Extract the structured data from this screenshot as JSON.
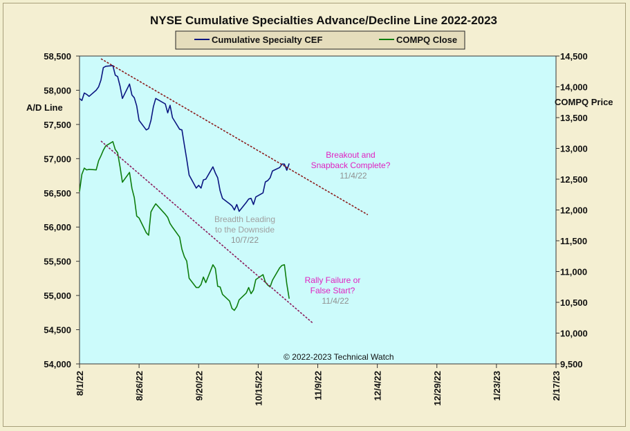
{
  "chart_data": {
    "type": "line",
    "title": "NYSE Cumulative Specialties Advance/Decline Line 2022-2023",
    "legend_position": "top-center",
    "grid": false,
    "plot_background": "#ccfbfb",
    "left_axis": {
      "label": "A/D Line",
      "ylim": [
        54000,
        58500
      ],
      "ticks": [
        "54,000",
        "54,500",
        "55,000",
        "55,500",
        "56,000",
        "56,500",
        "57,000",
        "57,500",
        "58,000",
        "58,500"
      ]
    },
    "right_axis": {
      "label": "COMPQ Price",
      "ylim": [
        9500,
        14500
      ],
      "ticks": [
        "9,500",
        "10,000",
        "10,500",
        "11,000",
        "11,500",
        "12,000",
        "12,500",
        "13,000",
        "13,500",
        "14,000",
        "14,500"
      ]
    },
    "x_axis": {
      "range": [
        "2022-08-01",
        "2023-02-17"
      ],
      "tick_labels": [
        "8/1/22",
        "8/26/22",
        "9/20/22",
        "10/15/22",
        "11/9/22",
        "12/4/22",
        "12/29/22",
        "1/23/23",
        "2/17/23"
      ],
      "tick_dates": [
        "2022-08-01",
        "2022-08-26",
        "2022-09-20",
        "2022-10-15",
        "2022-11-09",
        "2022-12-04",
        "2022-12-29",
        "2023-01-23",
        "2023-02-17"
      ]
    },
    "series": [
      {
        "name": "Cumulative Specialty CEF",
        "axis": "left",
        "color": "#0a1580",
        "points": [
          [
            "2022-08-01",
            57880
          ],
          [
            "2022-08-02",
            57850
          ],
          [
            "2022-08-03",
            57960
          ],
          [
            "2022-08-04",
            57940
          ],
          [
            "2022-08-05",
            57910
          ],
          [
            "2022-08-08",
            58000
          ],
          [
            "2022-08-09",
            58050
          ],
          [
            "2022-08-10",
            58150
          ],
          [
            "2022-08-11",
            58330
          ],
          [
            "2022-08-12",
            58350
          ],
          [
            "2022-08-15",
            58360
          ],
          [
            "2022-08-16",
            58220
          ],
          [
            "2022-08-17",
            58200
          ],
          [
            "2022-08-18",
            58060
          ],
          [
            "2022-08-19",
            57880
          ],
          [
            "2022-08-22",
            58090
          ],
          [
            "2022-08-23",
            57930
          ],
          [
            "2022-08-24",
            57890
          ],
          [
            "2022-08-25",
            57770
          ],
          [
            "2022-08-26",
            57560
          ],
          [
            "2022-08-29",
            57420
          ],
          [
            "2022-08-30",
            57440
          ],
          [
            "2022-08-31",
            57560
          ],
          [
            "2022-09-01",
            57760
          ],
          [
            "2022-09-02",
            57880
          ],
          [
            "2022-09-06",
            57800
          ],
          [
            "2022-09-07",
            57670
          ],
          [
            "2022-09-08",
            57780
          ],
          [
            "2022-09-09",
            57600
          ],
          [
            "2022-09-12",
            57430
          ],
          [
            "2022-09-13",
            57420
          ],
          [
            "2022-09-14",
            57200
          ],
          [
            "2022-09-15",
            56990
          ],
          [
            "2022-09-16",
            56760
          ],
          [
            "2022-09-19",
            56570
          ],
          [
            "2022-09-20",
            56610
          ],
          [
            "2022-09-21",
            56570
          ],
          [
            "2022-09-22",
            56690
          ],
          [
            "2022-09-23",
            56700
          ],
          [
            "2022-09-26",
            56880
          ],
          [
            "2022-09-27",
            56790
          ],
          [
            "2022-09-28",
            56720
          ],
          [
            "2022-09-29",
            56530
          ],
          [
            "2022-09-30",
            56420
          ],
          [
            "2022-10-03",
            56340
          ],
          [
            "2022-10-04",
            56310
          ],
          [
            "2022-10-05",
            56250
          ],
          [
            "2022-10-06",
            56330
          ],
          [
            "2022-10-07",
            56230
          ],
          [
            "2022-10-10",
            56360
          ],
          [
            "2022-10-11",
            56410
          ],
          [
            "2022-10-12",
            56420
          ],
          [
            "2022-10-13",
            56330
          ],
          [
            "2022-10-14",
            56440
          ],
          [
            "2022-10-17",
            56500
          ],
          [
            "2022-10-18",
            56660
          ],
          [
            "2022-10-19",
            56680
          ],
          [
            "2022-10-20",
            56720
          ],
          [
            "2022-10-21",
            56820
          ],
          [
            "2022-10-24",
            56870
          ],
          [
            "2022-10-25",
            56920
          ],
          [
            "2022-10-26",
            56920
          ],
          [
            "2022-10-27",
            56830
          ],
          [
            "2022-10-28",
            56930
          ]
        ]
      },
      {
        "name": "COMPQ Close",
        "axis": "right",
        "color": "#0d7d0d",
        "points": [
          [
            "2022-08-01",
            12300
          ],
          [
            "2022-08-02",
            12580
          ],
          [
            "2022-08-03",
            12680
          ],
          [
            "2022-08-04",
            12650
          ],
          [
            "2022-08-05",
            12660
          ],
          [
            "2022-08-08",
            12650
          ],
          [
            "2022-08-09",
            12800
          ],
          [
            "2022-08-10",
            12880
          ],
          [
            "2022-08-11",
            12970
          ],
          [
            "2022-08-12",
            13040
          ],
          [
            "2022-08-15",
            13110
          ],
          [
            "2022-08-16",
            12980
          ],
          [
            "2022-08-17",
            12930
          ],
          [
            "2022-08-18",
            12700
          ],
          [
            "2022-08-19",
            12450
          ],
          [
            "2022-08-22",
            12610
          ],
          [
            "2022-08-23",
            12350
          ],
          [
            "2022-08-24",
            12200
          ],
          [
            "2022-08-25",
            11900
          ],
          [
            "2022-08-26",
            11870
          ],
          [
            "2022-08-29",
            11630
          ],
          [
            "2022-08-30",
            11590
          ],
          [
            "2022-08-31",
            11970
          ],
          [
            "2022-09-01",
            12040
          ],
          [
            "2022-09-02",
            12100
          ],
          [
            "2022-09-06",
            11930
          ],
          [
            "2022-09-07",
            11880
          ],
          [
            "2022-09-08",
            11780
          ],
          [
            "2022-09-09",
            11720
          ],
          [
            "2022-09-12",
            11560
          ],
          [
            "2022-09-13",
            11360
          ],
          [
            "2022-09-14",
            11240
          ],
          [
            "2022-09-15",
            11170
          ],
          [
            "2022-09-16",
            10890
          ],
          [
            "2022-09-19",
            10740
          ],
          [
            "2022-09-20",
            10740
          ],
          [
            "2022-09-21",
            10790
          ],
          [
            "2022-09-22",
            10910
          ],
          [
            "2022-09-23",
            10820
          ],
          [
            "2022-09-26",
            11110
          ],
          [
            "2022-09-27",
            11050
          ],
          [
            "2022-09-28",
            10760
          ],
          [
            "2022-09-29",
            10750
          ],
          [
            "2022-09-30",
            10630
          ],
          [
            "2022-10-03",
            10520
          ],
          [
            "2022-10-04",
            10400
          ],
          [
            "2022-10-05",
            10370
          ],
          [
            "2022-10-06",
            10430
          ],
          [
            "2022-10-07",
            10540
          ],
          [
            "2022-10-10",
            10650
          ],
          [
            "2022-10-11",
            10740
          ],
          [
            "2022-10-12",
            10640
          ],
          [
            "2022-10-13",
            10700
          ],
          [
            "2022-10-14",
            10870
          ],
          [
            "2022-10-17",
            10950
          ],
          [
            "2022-10-18",
            10830
          ],
          [
            "2022-10-19",
            10780
          ],
          [
            "2022-10-20",
            10750
          ],
          [
            "2022-10-21",
            10860
          ],
          [
            "2022-10-24",
            11060
          ],
          [
            "2022-10-25",
            11100
          ],
          [
            "2022-10-26",
            11110
          ],
          [
            "2022-10-27",
            10800
          ],
          [
            "2022-10-28",
            10560
          ]
        ]
      }
    ],
    "trendlines": [
      {
        "axis": "left",
        "color": "#8b1a1a",
        "style": "dashed",
        "start": [
          "2022-08-10",
          58460
        ],
        "end": [
          "2022-11-30",
          56180
        ]
      },
      {
        "axis": "right",
        "color": "#8b1a5a",
        "style": "dashed",
        "start": [
          "2022-08-10",
          13120
        ],
        "end": [
          "2022-11-07",
          10160
        ]
      }
    ],
    "annotations": [
      {
        "lines": [
          "Breakout and",
          "Snapback Complete?"
        ],
        "date": "11/4/22",
        "color": "#e020c0"
      },
      {
        "lines": [
          "Breadth Leading",
          "to the Downside"
        ],
        "date": "10/7/22",
        "color": "#a0a0a0"
      },
      {
        "lines": [
          "Rally Failure  or",
          "False Start?"
        ],
        "date": "11/4/22",
        "color": "#e020c0"
      }
    ],
    "copyright": "© 2022-2023  Technical Watch"
  }
}
